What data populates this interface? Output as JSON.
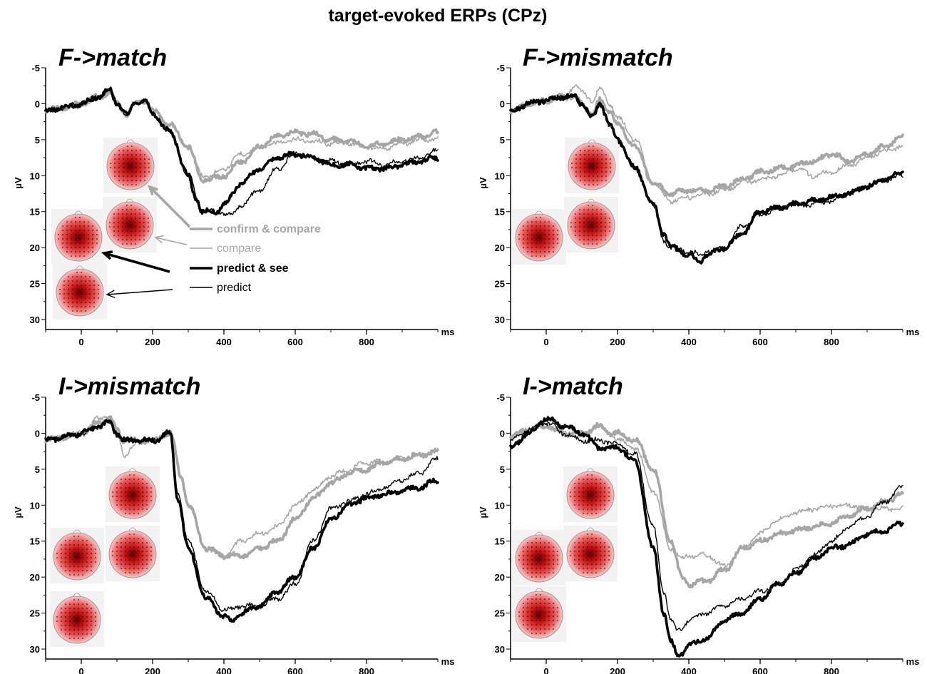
{
  "chart_data": {
    "type": "line",
    "title": "target-evoked ERPs (CPz)",
    "xlabel": "ms",
    "ylabel": "µV",
    "xlim": [
      -100,
      1000
    ],
    "ylim": [
      -5,
      30
    ],
    "xticks": [
      0,
      200,
      400,
      600,
      800
    ],
    "yticks": [
      -5,
      0,
      5,
      10,
      15,
      20,
      25,
      30
    ],
    "y_inverted": true,
    "legend": {
      "placement": "inside top-left panel",
      "entries": [
        {
          "name": "confirm & compare",
          "color": "#a6a6a6",
          "style": "thick"
        },
        {
          "name": "compare",
          "color": "#a6a6a6",
          "style": "thin"
        },
        {
          "name": "predict & see",
          "color": "#000000",
          "style": "thick"
        },
        {
          "name": "predict",
          "color": "#000000",
          "style": "thin"
        }
      ]
    },
    "panels": [
      {
        "title": "F->match",
        "series": [
          {
            "name": "confirm & compare",
            "x": [
              -100,
              -50,
              0,
              50,
              80,
              100,
              130,
              150,
              180,
              200,
              250,
              300,
              340,
              360,
              400,
              450,
              500,
              550,
              600,
              650,
              700,
              750,
              800,
              850,
              900,
              950,
              1000
            ],
            "values": [
              1,
              0.5,
              0,
              -1,
              -1.5,
              0,
              1.5,
              0,
              -0.5,
              1,
              3,
              6,
              10.5,
              10.5,
              10,
              8,
              6,
              4.5,
              4,
              4.2,
              5,
              5.2,
              6,
              5.5,
              5,
              4.5,
              4
            ]
          },
          {
            "name": "compare",
            "x": [
              -100,
              -50,
              0,
              50,
              80,
              100,
              130,
              150,
              180,
              200,
              250,
              300,
              340,
              360,
              400,
              450,
              500,
              550,
              600,
              650,
              700,
              750,
              800,
              850,
              900,
              950,
              1000
            ],
            "values": [
              1,
              0.5,
              0,
              -1,
              -1.5,
              0,
              1.5,
              0,
              -0.5,
              1,
              3,
              6,
              10,
              10,
              9,
              7,
              6,
              5.5,
              5,
              5.2,
              5.5,
              5.5,
              6,
              6.2,
              5.5,
              5,
              4.8
            ]
          },
          {
            "name": "predict & see",
            "x": [
              -100,
              -50,
              0,
              50,
              80,
              100,
              130,
              150,
              180,
              200,
              250,
              300,
              320,
              340,
              380,
              400,
              450,
              500,
              550,
              600,
              650,
              700,
              750,
              800,
              850,
              900,
              950,
              1000
            ],
            "values": [
              1,
              0.5,
              0,
              -1,
              -2,
              0,
              1.5,
              0,
              -0.5,
              1.5,
              4,
              10,
              13,
              15,
              15,
              14,
              11,
              9,
              7.5,
              7,
              7.5,
              8.5,
              8.5,
              9,
              9,
              8.5,
              8,
              7.5
            ]
          },
          {
            "name": "predict",
            "x": [
              -100,
              -50,
              0,
              50,
              80,
              100,
              130,
              150,
              180,
              200,
              250,
              300,
              340,
              380,
              420,
              450,
              500,
              550,
              600,
              650,
              700,
              750,
              800,
              850,
              900,
              950,
              1000
            ],
            "values": [
              1,
              0.5,
              0,
              -1,
              -2,
              0,
              1.5,
              0,
              -0.5,
              1.5,
              4,
              10,
              15,
              15,
              15.5,
              14,
              12,
              9,
              7,
              7.5,
              8,
              8.5,
              8,
              8.5,
              8,
              7.5,
              6.5
            ]
          }
        ],
        "topo_count": 4
      },
      {
        "title": "F->mismatch",
        "series": [
          {
            "name": "confirm & compare",
            "x": [
              -100,
              -50,
              0,
              50,
              80,
              100,
              130,
              150,
              180,
              200,
              250,
              300,
              350,
              400,
              450,
              500,
              550,
              600,
              650,
              700,
              750,
              800,
              850,
              900,
              950,
              1000
            ],
            "values": [
              1,
              0,
              -0.5,
              -1,
              -1,
              0,
              1.5,
              -0.5,
              1,
              3,
              6,
              11,
              12.5,
              12,
              12,
              11.5,
              10.5,
              9.5,
              9,
              8.5,
              8,
              7,
              8,
              7,
              6,
              4.5
            ]
          },
          {
            "name": "compare",
            "x": [
              -100,
              -50,
              0,
              50,
              80,
              100,
              130,
              150,
              180,
              200,
              250,
              300,
              350,
              400,
              450,
              500,
              550,
              600,
              650,
              700,
              750,
              800,
              850,
              900,
              950,
              1000
            ],
            "values": [
              1,
              0,
              -0.5,
              -1,
              -2.5,
              -1.5,
              -0.5,
              -2,
              0,
              2,
              5,
              11,
              13.5,
              13,
              12.5,
              12,
              11,
              10.5,
              10,
              9,
              10,
              9.5,
              8.5,
              7.5,
              6.5,
              6
            ]
          },
          {
            "name": "predict & see",
            "x": [
              -100,
              -50,
              0,
              50,
              80,
              100,
              130,
              150,
              180,
              200,
              250,
              300,
              330,
              350,
              400,
              430,
              450,
              500,
              550,
              600,
              650,
              700,
              750,
              800,
              850,
              900,
              950,
              1000
            ],
            "values": [
              1,
              0,
              -0.5,
              -1,
              -1,
              0,
              2,
              0,
              3,
              5,
              9,
              14,
              18,
              20,
              21,
              22,
              21,
              20,
              18,
              15,
              14.5,
              14,
              13.5,
              13,
              12.5,
              11.5,
              10.5,
              9.5
            ]
          },
          {
            "name": "predict",
            "x": [
              -100,
              -50,
              0,
              50,
              80,
              100,
              130,
              150,
              180,
              200,
              250,
              300,
              330,
              350,
              400,
              430,
              450,
              500,
              550,
              600,
              650,
              700,
              750,
              800,
              850,
              900,
              950,
              1000
            ],
            "values": [
              1,
              0,
              -0.5,
              -1,
              -1,
              0,
              2,
              0,
              3,
              5,
              9,
              14,
              19,
              20,
              20.5,
              21,
              20.5,
              20,
              17,
              15.5,
              14.5,
              14,
              14,
              13.5,
              12.5,
              11.5,
              10.5,
              10
            ]
          }
        ],
        "topo_count": 3
      },
      {
        "title": "I->mismatch",
        "series": [
          {
            "name": "confirm & compare",
            "x": [
              -100,
              -50,
              0,
              50,
              80,
              100,
              120,
              150,
              200,
              250,
              280,
              300,
              350,
              400,
              450,
              500,
              550,
              600,
              650,
              700,
              750,
              800,
              850,
              900,
              950,
              1000
            ],
            "values": [
              1,
              0.5,
              0,
              -1.5,
              -2,
              -0.5,
              1,
              1,
              1,
              0,
              6,
              10,
              16,
              17,
              17,
              16,
              15,
              12,
              9,
              7,
              5.5,
              5,
              4,
              3.5,
              3,
              2.5
            ]
          },
          {
            "name": "compare",
            "x": [
              -100,
              -50,
              0,
              50,
              80,
              100,
              120,
              150,
              200,
              250,
              280,
              300,
              350,
              400,
              450,
              500,
              550,
              600,
              650,
              700,
              750,
              800,
              850,
              900,
              950,
              1000
            ],
            "values": [
              1,
              0.5,
              0,
              -2,
              -2.5,
              0,
              3,
              1.5,
              1,
              0,
              6,
              10,
              16,
              17,
              15,
              14,
              13,
              10,
              8,
              6,
              5,
              4,
              4,
              3.5,
              3,
              2.5
            ]
          },
          {
            "name": "predict & see",
            "x": [
              -100,
              -50,
              0,
              50,
              80,
              100,
              120,
              150,
              200,
              250,
              270,
              300,
              350,
              400,
              420,
              450,
              500,
              550,
              600,
              650,
              700,
              750,
              800,
              850,
              900,
              950,
              1000
            ],
            "values": [
              1,
              0.5,
              0,
              -1,
              -1.5,
              0,
              1,
              1,
              1,
              0,
              9,
              16,
              23,
              25.5,
              26,
              25,
              24,
              22,
              20,
              16,
              12,
              10,
              9,
              8.5,
              8,
              7.5,
              6.5
            ]
          },
          {
            "name": "predict",
            "x": [
              -100,
              -50,
              0,
              50,
              80,
              100,
              120,
              150,
              200,
              250,
              270,
              300,
              350,
              400,
              420,
              450,
              500,
              550,
              600,
              650,
              700,
              750,
              800,
              850,
              900,
              950,
              1000
            ],
            "values": [
              1,
              0.5,
              0,
              -1,
              -1.5,
              0,
              1,
              1,
              1,
              0,
              8,
              15,
              22,
              24.5,
              24.5,
              24,
              24,
              23,
              21,
              15,
              10.5,
              9.5,
              8.5,
              7.5,
              6.5,
              5.5,
              3.5
            ]
          }
        ],
        "topo_count": 4
      },
      {
        "title": "I->match",
        "series": [
          {
            "name": "confirm & compare",
            "x": [
              -100,
              -50,
              0,
              50,
              100,
              150,
              180,
              200,
              250,
              300,
              350,
              380,
              400,
              450,
              500,
              550,
              600,
              650,
              700,
              750,
              800,
              850,
              900,
              950,
              1000
            ],
            "values": [
              0.5,
              -0.5,
              -1,
              0,
              0,
              -1,
              0,
              0,
              1,
              5,
              15,
              20,
              21,
              20.5,
              19,
              16,
              15,
              14,
              13.5,
              13,
              12.5,
              11.5,
              10.5,
              9.5,
              8.5
            ]
          },
          {
            "name": "compare",
            "x": [
              -100,
              -50,
              0,
              50,
              100,
              150,
              180,
              200,
              250,
              300,
              350,
              380,
              400,
              450,
              500,
              550,
              600,
              650,
              700,
              750,
              800,
              850,
              900,
              950,
              1000
            ],
            "values": [
              0.5,
              -0.5,
              -1,
              0,
              0,
              -1,
              0,
              1,
              2,
              8,
              16,
              17.5,
              17,
              17,
              18.5,
              16,
              14,
              12,
              11,
              10.5,
              10,
              10,
              10.5,
              10.5,
              10.5
            ]
          },
          {
            "name": "predict & see",
            "x": [
              -100,
              -50,
              0,
              50,
              100,
              150,
              200,
              250,
              300,
              330,
              350,
              370,
              400,
              450,
              500,
              550,
              600,
              650,
              700,
              750,
              800,
              850,
              900,
              950,
              1000
            ],
            "values": [
              2,
              0,
              -2,
              -1,
              0,
              2,
              2,
              4,
              16,
              25,
              29,
              31,
              29.5,
              28.5,
              26,
              25,
              23,
              21,
              19.5,
              17.5,
              16,
              15.5,
              14,
              13.5,
              12.5
            ]
          },
          {
            "name": "predict",
            "x": [
              -100,
              -50,
              0,
              50,
              100,
              150,
              200,
              250,
              300,
              330,
              350,
              370,
              400,
              450,
              500,
              550,
              600,
              650,
              700,
              750,
              800,
              850,
              900,
              950,
              1000
            ],
            "values": [
              1,
              -0.5,
              -1.5,
              0,
              1,
              1,
              1.5,
              3,
              13,
              22,
              26,
              27.5,
              26,
              25,
              24,
              23,
              22,
              21,
              19,
              17,
              15,
              13,
              11.5,
              9.5,
              7.5
            ]
          }
        ],
        "topo_count": 4
      }
    ]
  }
}
